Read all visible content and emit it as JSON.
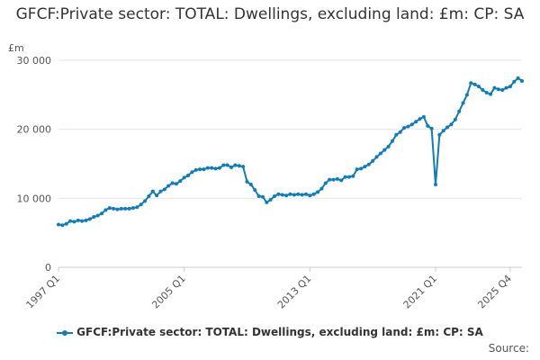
{
  "chart_data": {
    "type": "line",
    "title": "GFCF:Private sector: TOTAL: Dwellings, excluding land: £m: CP: SA",
    "ylabel": "£m",
    "xlabel": "",
    "ylim": [
      0,
      30000
    ],
    "yticks": [
      "0",
      "10 000",
      "20 000",
      "30 000"
    ],
    "ytick_values": [
      0,
      10000,
      20000,
      30000
    ],
    "xticks": [
      "1997 Q1",
      "2005 Q1",
      "2013 Q1",
      "2021 Q1",
      "2025 Q4"
    ],
    "xtick_index": [
      0,
      32,
      64,
      96,
      115
    ],
    "grid": true,
    "legend_position": "bottom",
    "series": [
      {
        "name": "GFCF:Private sector: TOTAL: Dwellings, excluding land: £m: CP: SA",
        "color": "#0e7db9",
        "values": [
          6200,
          6100,
          6300,
          6700,
          6600,
          6800,
          6700,
          6800,
          7000,
          7300,
          7500,
          7800,
          8300,
          8600,
          8500,
          8400,
          8500,
          8500,
          8500,
          8600,
          8700,
          9100,
          9600,
          10300,
          11000,
          10400,
          11000,
          11300,
          11800,
          12200,
          12100,
          12500,
          13000,
          13300,
          13800,
          14100,
          14200,
          14200,
          14400,
          14400,
          14300,
          14400,
          14800,
          14800,
          14500,
          14800,
          14700,
          14600,
          12400,
          12000,
          11200,
          10300,
          10200,
          9400,
          9800,
          10300,
          10600,
          10500,
          10400,
          10600,
          10500,
          10600,
          10500,
          10600,
          10400,
          10600,
          10900,
          11400,
          12200,
          12700,
          12700,
          12800,
          12600,
          13100,
          13100,
          13200,
          14200,
          14300,
          14600,
          14900,
          15400,
          16000,
          16500,
          17000,
          17500,
          18300,
          19200,
          19600,
          20200,
          20400,
          20700,
          21100,
          21500,
          21800,
          20500,
          20100,
          12000,
          19200,
          19800,
          20300,
          20700,
          21400,
          22600,
          23800,
          25000,
          26700,
          26500,
          26200,
          25700,
          25300,
          25100,
          26000,
          25800,
          25700,
          26000,
          26200,
          26900,
          27400,
          27000
        ]
      }
    ]
  },
  "legend": {
    "label": "GFCF:Private sector: TOTAL: Dwellings, excluding land: £m: CP: SA"
  },
  "footer": {
    "source_label": "Source:"
  }
}
